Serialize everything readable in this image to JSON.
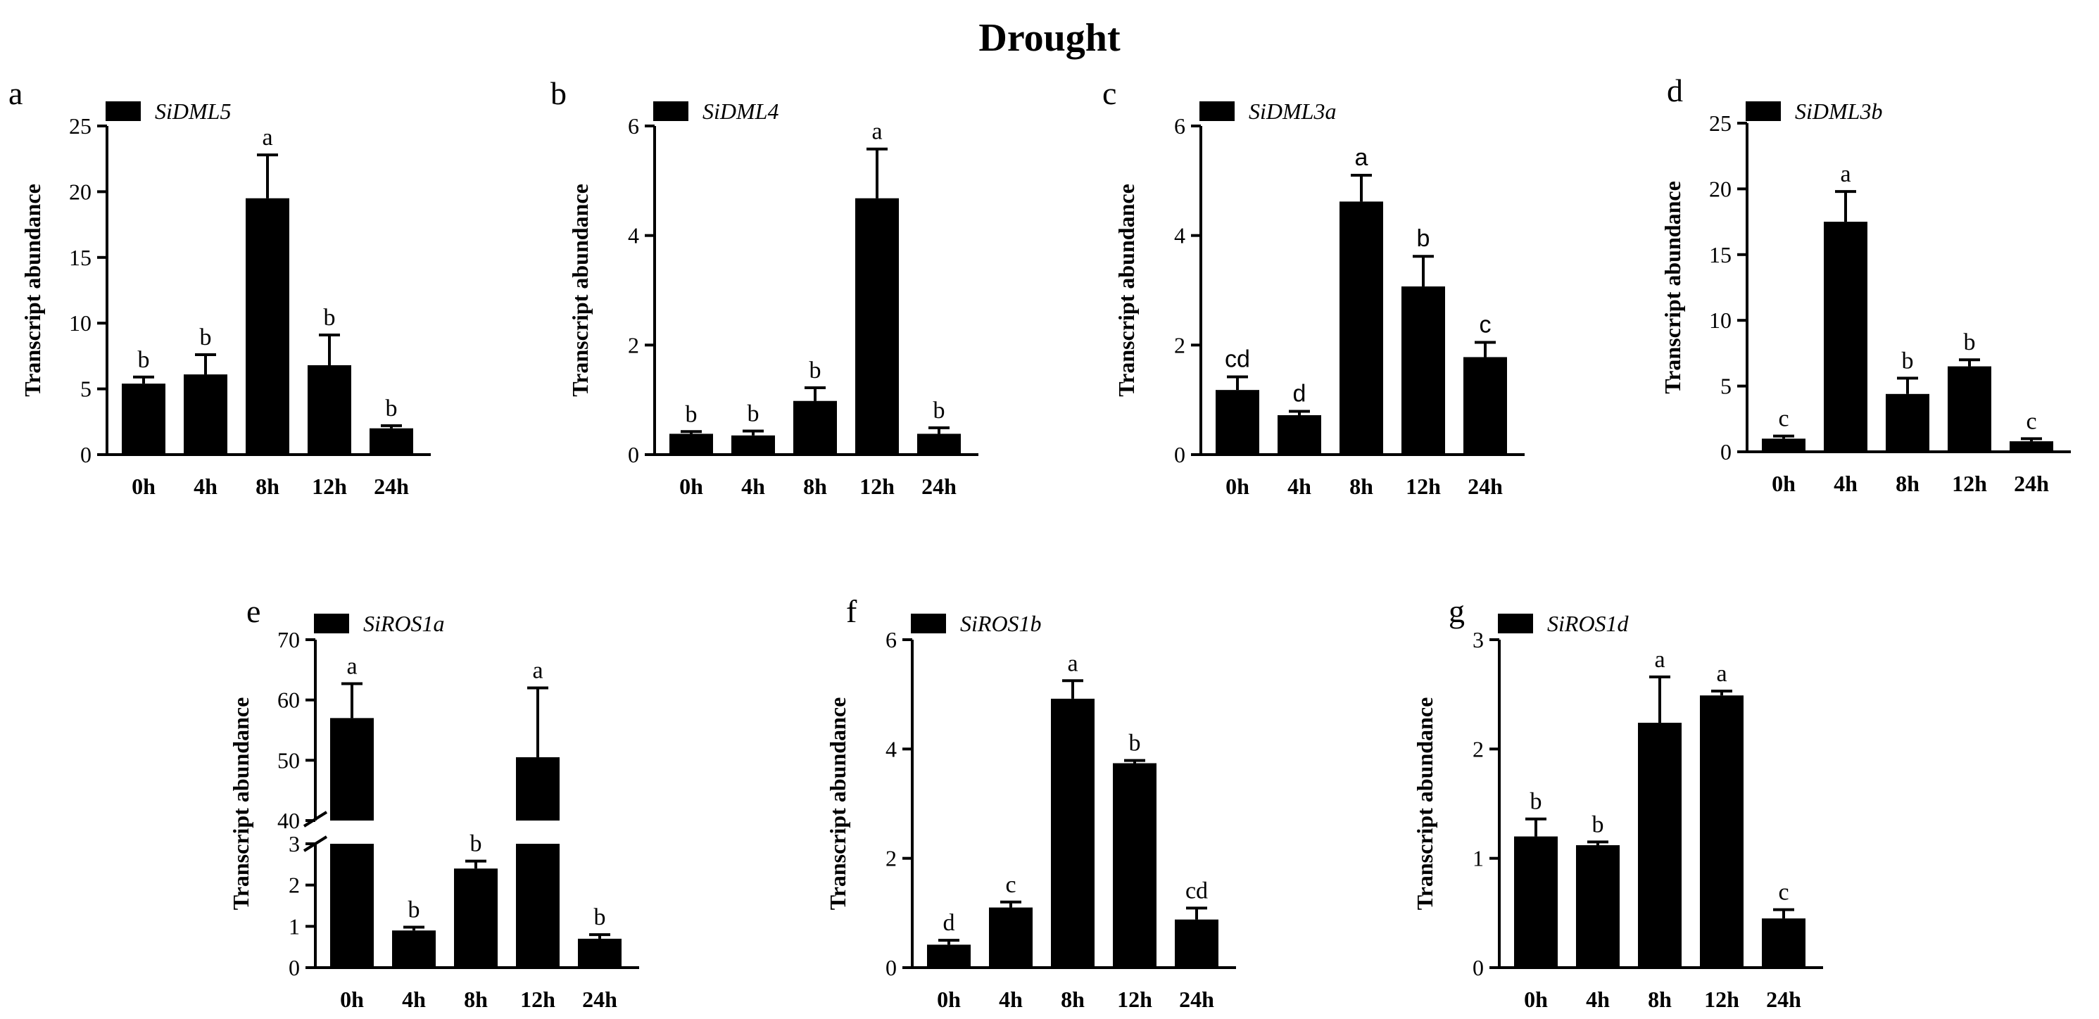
{
  "figure_title": "Drought",
  "chart_data": [
    {
      "type": "bar",
      "panel_label": "a",
      "legend": "SiDML5",
      "categories": [
        "0h",
        "4h",
        "8h",
        "12h",
        "24h"
      ],
      "values": [
        5.4,
        6.1,
        19.5,
        6.8,
        2.0
      ],
      "errors": [
        0.5,
        1.5,
        3.3,
        2.3,
        0.2
      ],
      "letters": [
        "b",
        "b",
        "a",
        "b",
        "b"
      ],
      "ylabel": "Transcript abundance",
      "xlabel": "",
      "ylim": [
        0,
        25
      ],
      "yticks": [
        0,
        5,
        10,
        15,
        20,
        25
      ],
      "tick_labels": [
        "0",
        "5",
        "10",
        "15",
        "20",
        "25"
      ],
      "sig_font": "serif"
    },
    {
      "type": "bar",
      "panel_label": "b",
      "legend": "SiDML4",
      "categories": [
        "0h",
        "4h",
        "8h",
        "12h",
        "24h"
      ],
      "values": [
        0.38,
        0.35,
        0.98,
        4.68,
        0.38
      ],
      "errors": [
        0.04,
        0.08,
        0.24,
        0.9,
        0.11
      ],
      "letters": [
        "b",
        "b",
        "b",
        "a",
        "b"
      ],
      "ylabel": "Transcript abundance",
      "xlabel": "",
      "ylim": [
        0,
        6
      ],
      "yticks": [
        0,
        2,
        4,
        6
      ],
      "tick_labels": [
        "0",
        "2",
        "4",
        "6"
      ],
      "sig_font": "serif"
    },
    {
      "type": "bar",
      "panel_label": "c",
      "legend": "SiDML3a",
      "categories": [
        "0h",
        "4h",
        "8h",
        "12h",
        "24h"
      ],
      "values": [
        1.18,
        0.72,
        4.62,
        3.07,
        1.78
      ],
      "errors": [
        0.24,
        0.07,
        0.48,
        0.55,
        0.27
      ],
      "letters": [
        "cd",
        "d",
        "a",
        "b",
        "c"
      ],
      "ylabel": "Transcript abundance",
      "xlabel": "",
      "ylim": [
        0,
        6
      ],
      "yticks": [
        0,
        2,
        4,
        6
      ],
      "tick_labels": [
        "0",
        "2",
        "4",
        "6"
      ],
      "sig_font": "sans"
    },
    {
      "type": "bar",
      "panel_label": "d",
      "legend": "SiDML3b",
      "categories": [
        "0h",
        "4h",
        "8h",
        "12h",
        "24h"
      ],
      "values": [
        1.0,
        17.5,
        4.4,
        6.5,
        0.8
      ],
      "errors": [
        0.2,
        2.3,
        1.2,
        0.5,
        0.2
      ],
      "letters": [
        "c",
        "a",
        "b",
        "b",
        "c"
      ],
      "ylabel": "Transcript abundance",
      "xlabel": "",
      "ylim": [
        0,
        25
      ],
      "yticks": [
        0,
        5,
        10,
        15,
        20,
        25
      ],
      "tick_labels": [
        "0",
        "5",
        "10",
        "15",
        "20",
        "25"
      ],
      "sig_font": "serif"
    },
    {
      "type": "bar",
      "panel_label": "e",
      "legend": "SiROS1a",
      "categories": [
        "0h",
        "4h",
        "8h",
        "12h",
        "24h"
      ],
      "values": [
        57,
        0.9,
        2.4,
        50.5,
        0.7
      ],
      "errors": [
        5.7,
        0.08,
        0.18,
        11.5,
        0.1
      ],
      "letters": [
        "a",
        "b",
        "b",
        "a",
        "b"
      ],
      "ylabel": "Transcript abundance",
      "xlabel": "",
      "axis_break": {
        "lower": [
          0,
          3
        ],
        "upper": [
          40,
          70
        ]
      },
      "yticks_lower": [
        0,
        1,
        2,
        3
      ],
      "tick_labels_lower": [
        "0",
        "1",
        "2",
        "3"
      ],
      "yticks_upper": [
        40,
        50,
        60,
        70
      ],
      "tick_labels_upper": [
        "40",
        "50",
        "60",
        "70"
      ],
      "sig_font": "serif"
    },
    {
      "type": "bar",
      "panel_label": "f",
      "legend": "SiROS1b",
      "categories": [
        "0h",
        "4h",
        "8h",
        "12h",
        "24h"
      ],
      "values": [
        0.42,
        1.1,
        4.92,
        3.74,
        0.88
      ],
      "errors": [
        0.08,
        0.1,
        0.33,
        0.05,
        0.21
      ],
      "letters": [
        "d",
        "c",
        "a",
        "b",
        "cd"
      ],
      "ylabel": "Transcript abundance",
      "xlabel": "",
      "ylim": [
        0,
        6
      ],
      "yticks": [
        0,
        2,
        4,
        6
      ],
      "tick_labels": [
        "0",
        "2",
        "4",
        "6"
      ],
      "sig_font": "serif"
    },
    {
      "type": "bar",
      "panel_label": "g",
      "legend": "SiROS1d",
      "categories": [
        "0h",
        "4h",
        "8h",
        "12h",
        "24h"
      ],
      "values": [
        1.2,
        1.12,
        2.24,
        2.49,
        0.45
      ],
      "errors": [
        0.16,
        0.03,
        0.42,
        0.04,
        0.08
      ],
      "letters": [
        "b",
        "b",
        "a",
        "a",
        "c"
      ],
      "ylabel": "Transcript abundance",
      "xlabel": "",
      "ylim": [
        0,
        3
      ],
      "yticks": [
        0,
        1,
        2,
        3
      ],
      "tick_labels": [
        "0",
        "1",
        "2",
        "3"
      ],
      "sig_font": "serif"
    }
  ]
}
